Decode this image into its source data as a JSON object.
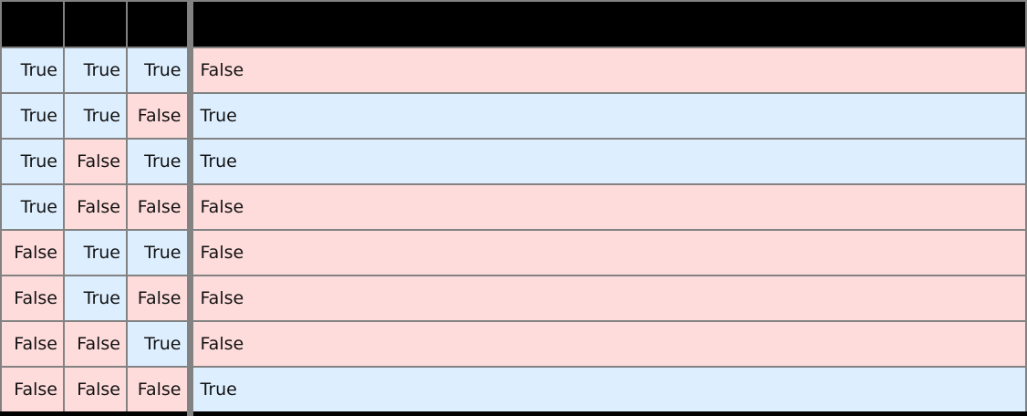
{
  "colors": {
    "true_bg": "#ddeeff",
    "false_bg": "#ffdcdc",
    "header_bg": "#000000",
    "border": "#828282",
    "bottom_border": "#000000",
    "text": "#111111"
  },
  "chart_data": {
    "type": "table",
    "title": "",
    "columns": [
      "",
      "",
      "",
      ""
    ],
    "rows": [
      [
        "True",
        "True",
        "True",
        "False"
      ],
      [
        "True",
        "True",
        "False",
        "True"
      ],
      [
        "True",
        "False",
        "True",
        "True"
      ],
      [
        "True",
        "False",
        "False",
        "False"
      ],
      [
        "False",
        "True",
        "True",
        "False"
      ],
      [
        "False",
        "True",
        "False",
        "False"
      ],
      [
        "False",
        "False",
        "True",
        "False"
      ],
      [
        "False",
        "False",
        "False",
        "True"
      ]
    ],
    "value_colors": {
      "True": "#ddeeff",
      "False": "#ffdcdc"
    },
    "header_background": "#000000",
    "legend_position": "none",
    "grid": "on"
  }
}
